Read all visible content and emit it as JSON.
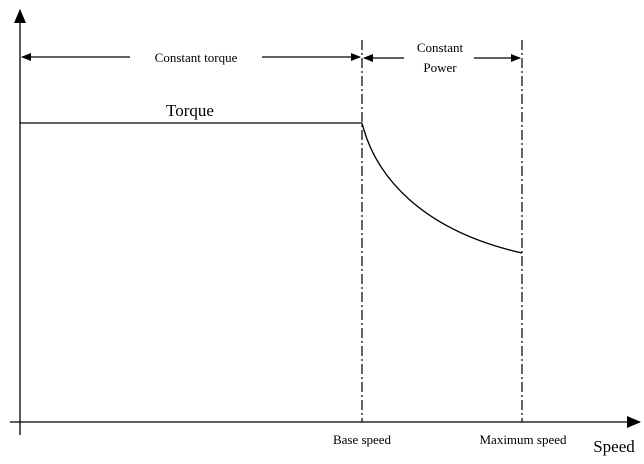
{
  "regions": {
    "constant_torque": "Constant torque",
    "constant_power": [
      "Constant",
      "Power"
    ]
  },
  "curve_label": "Torque",
  "axis": {
    "base_speed": "Base speed",
    "maximum_speed": "Maximum speed",
    "x_label": "Speed"
  }
}
